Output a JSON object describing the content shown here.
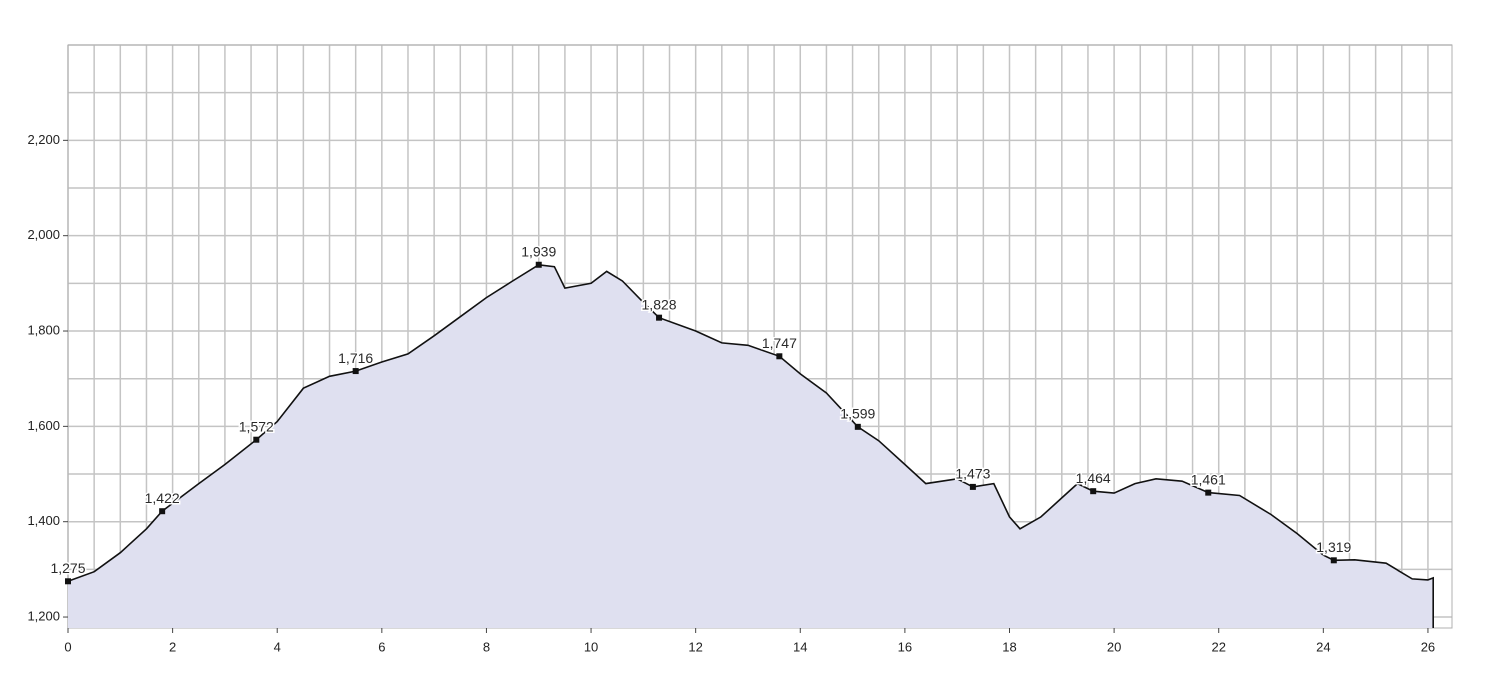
{
  "chart_data": {
    "type": "area",
    "series": [
      {
        "color": "#dfe0f0",
        "line_color": "#111111",
        "x": [
          0,
          0.5,
          1,
          1.5,
          1.8,
          2.5,
          3,
          3.6,
          4,
          4.5,
          5,
          5.5,
          6,
          6.5,
          7,
          7.5,
          8,
          8.5,
          9,
          9.3,
          9.5,
          10,
          10.3,
          10.6,
          11,
          11.3,
          12,
          12.5,
          13,
          13.6,
          14,
          14.5,
          15.1,
          15.5,
          16,
          16.4,
          17,
          17.3,
          17.7,
          18,
          18.2,
          18.6,
          19,
          19.3,
          19.6,
          20,
          20.4,
          20.8,
          21.3,
          21.8,
          22.4,
          23,
          23.5,
          24,
          24.2,
          24.6,
          25.2,
          25.7,
          26,
          26.1
        ],
        "values": [
          1275,
          1295,
          1335,
          1385,
          1422,
          1480,
          1520,
          1572,
          1610,
          1680,
          1705,
          1716,
          1735,
          1752,
          1790,
          1830,
          1870,
          1905,
          1939,
          1935,
          1890,
          1900,
          1925,
          1905,
          1860,
          1828,
          1800,
          1775,
          1770,
          1747,
          1710,
          1670,
          1599,
          1570,
          1520,
          1480,
          1490,
          1473,
          1480,
          1410,
          1385,
          1410,
          1450,
          1480,
          1464,
          1460,
          1480,
          1490,
          1485,
          1461,
          1455,
          1415,
          1375,
          1330,
          1319,
          1320,
          1313,
          1280,
          1278,
          1282
        ]
      }
    ],
    "markers": {
      "x": [
        0,
        1.8,
        3.6,
        5.5,
        9,
        11.3,
        13.6,
        15.1,
        17.3,
        19.6,
        21.8,
        24.2
      ],
      "values": [
        1275,
        1422,
        1572,
        1716,
        1939,
        1828,
        1747,
        1599,
        1473,
        1464,
        1461,
        1319
      ],
      "value_labels": [
        "1,275",
        "1,422",
        "1,572",
        "1,716",
        "1,939",
        "1,828",
        "1,747",
        "1,599",
        "1,473",
        "1,464",
        "1,461",
        "1,319"
      ]
    },
    "xlim": [
      0,
      26.46
    ],
    "ylim": [
      1177,
      2400
    ],
    "xticks": [
      0,
      2,
      4,
      6,
      8,
      10,
      12,
      14,
      16,
      18,
      20,
      22,
      24,
      26
    ],
    "yticks": [
      {
        "value": 1200,
        "label": "1,200"
      },
      {
        "value": 1400,
        "label": "1,400"
      },
      {
        "value": 1600,
        "label": "1,600"
      },
      {
        "value": 1800,
        "label": "1,800"
      },
      {
        "value": 2000,
        "label": "2,000"
      },
      {
        "value": 2200,
        "label": "2,200"
      }
    ],
    "xgrid": [
      0,
      0.5,
      1,
      1.5,
      2,
      2.5,
      3,
      3.5,
      4,
      4.5,
      5,
      5.5,
      6,
      6.5,
      7,
      7.5,
      8,
      8.5,
      9,
      9.5,
      10,
      10.5,
      11,
      11.5,
      12,
      12.5,
      13,
      13.5,
      14,
      14.5,
      15,
      15.5,
      16,
      16.5,
      17,
      17.5,
      18,
      18.5,
      19,
      19.5,
      20,
      20.5,
      21,
      21.5,
      22,
      22.5,
      23,
      23.5,
      24,
      24.5,
      25,
      25.5,
      26
    ],
    "ygrid": [
      1200,
      1300,
      1400,
      1500,
      1600,
      1700,
      1800,
      1900,
      2000,
      2100,
      2200,
      2300,
      2400
    ],
    "grid": true
  }
}
